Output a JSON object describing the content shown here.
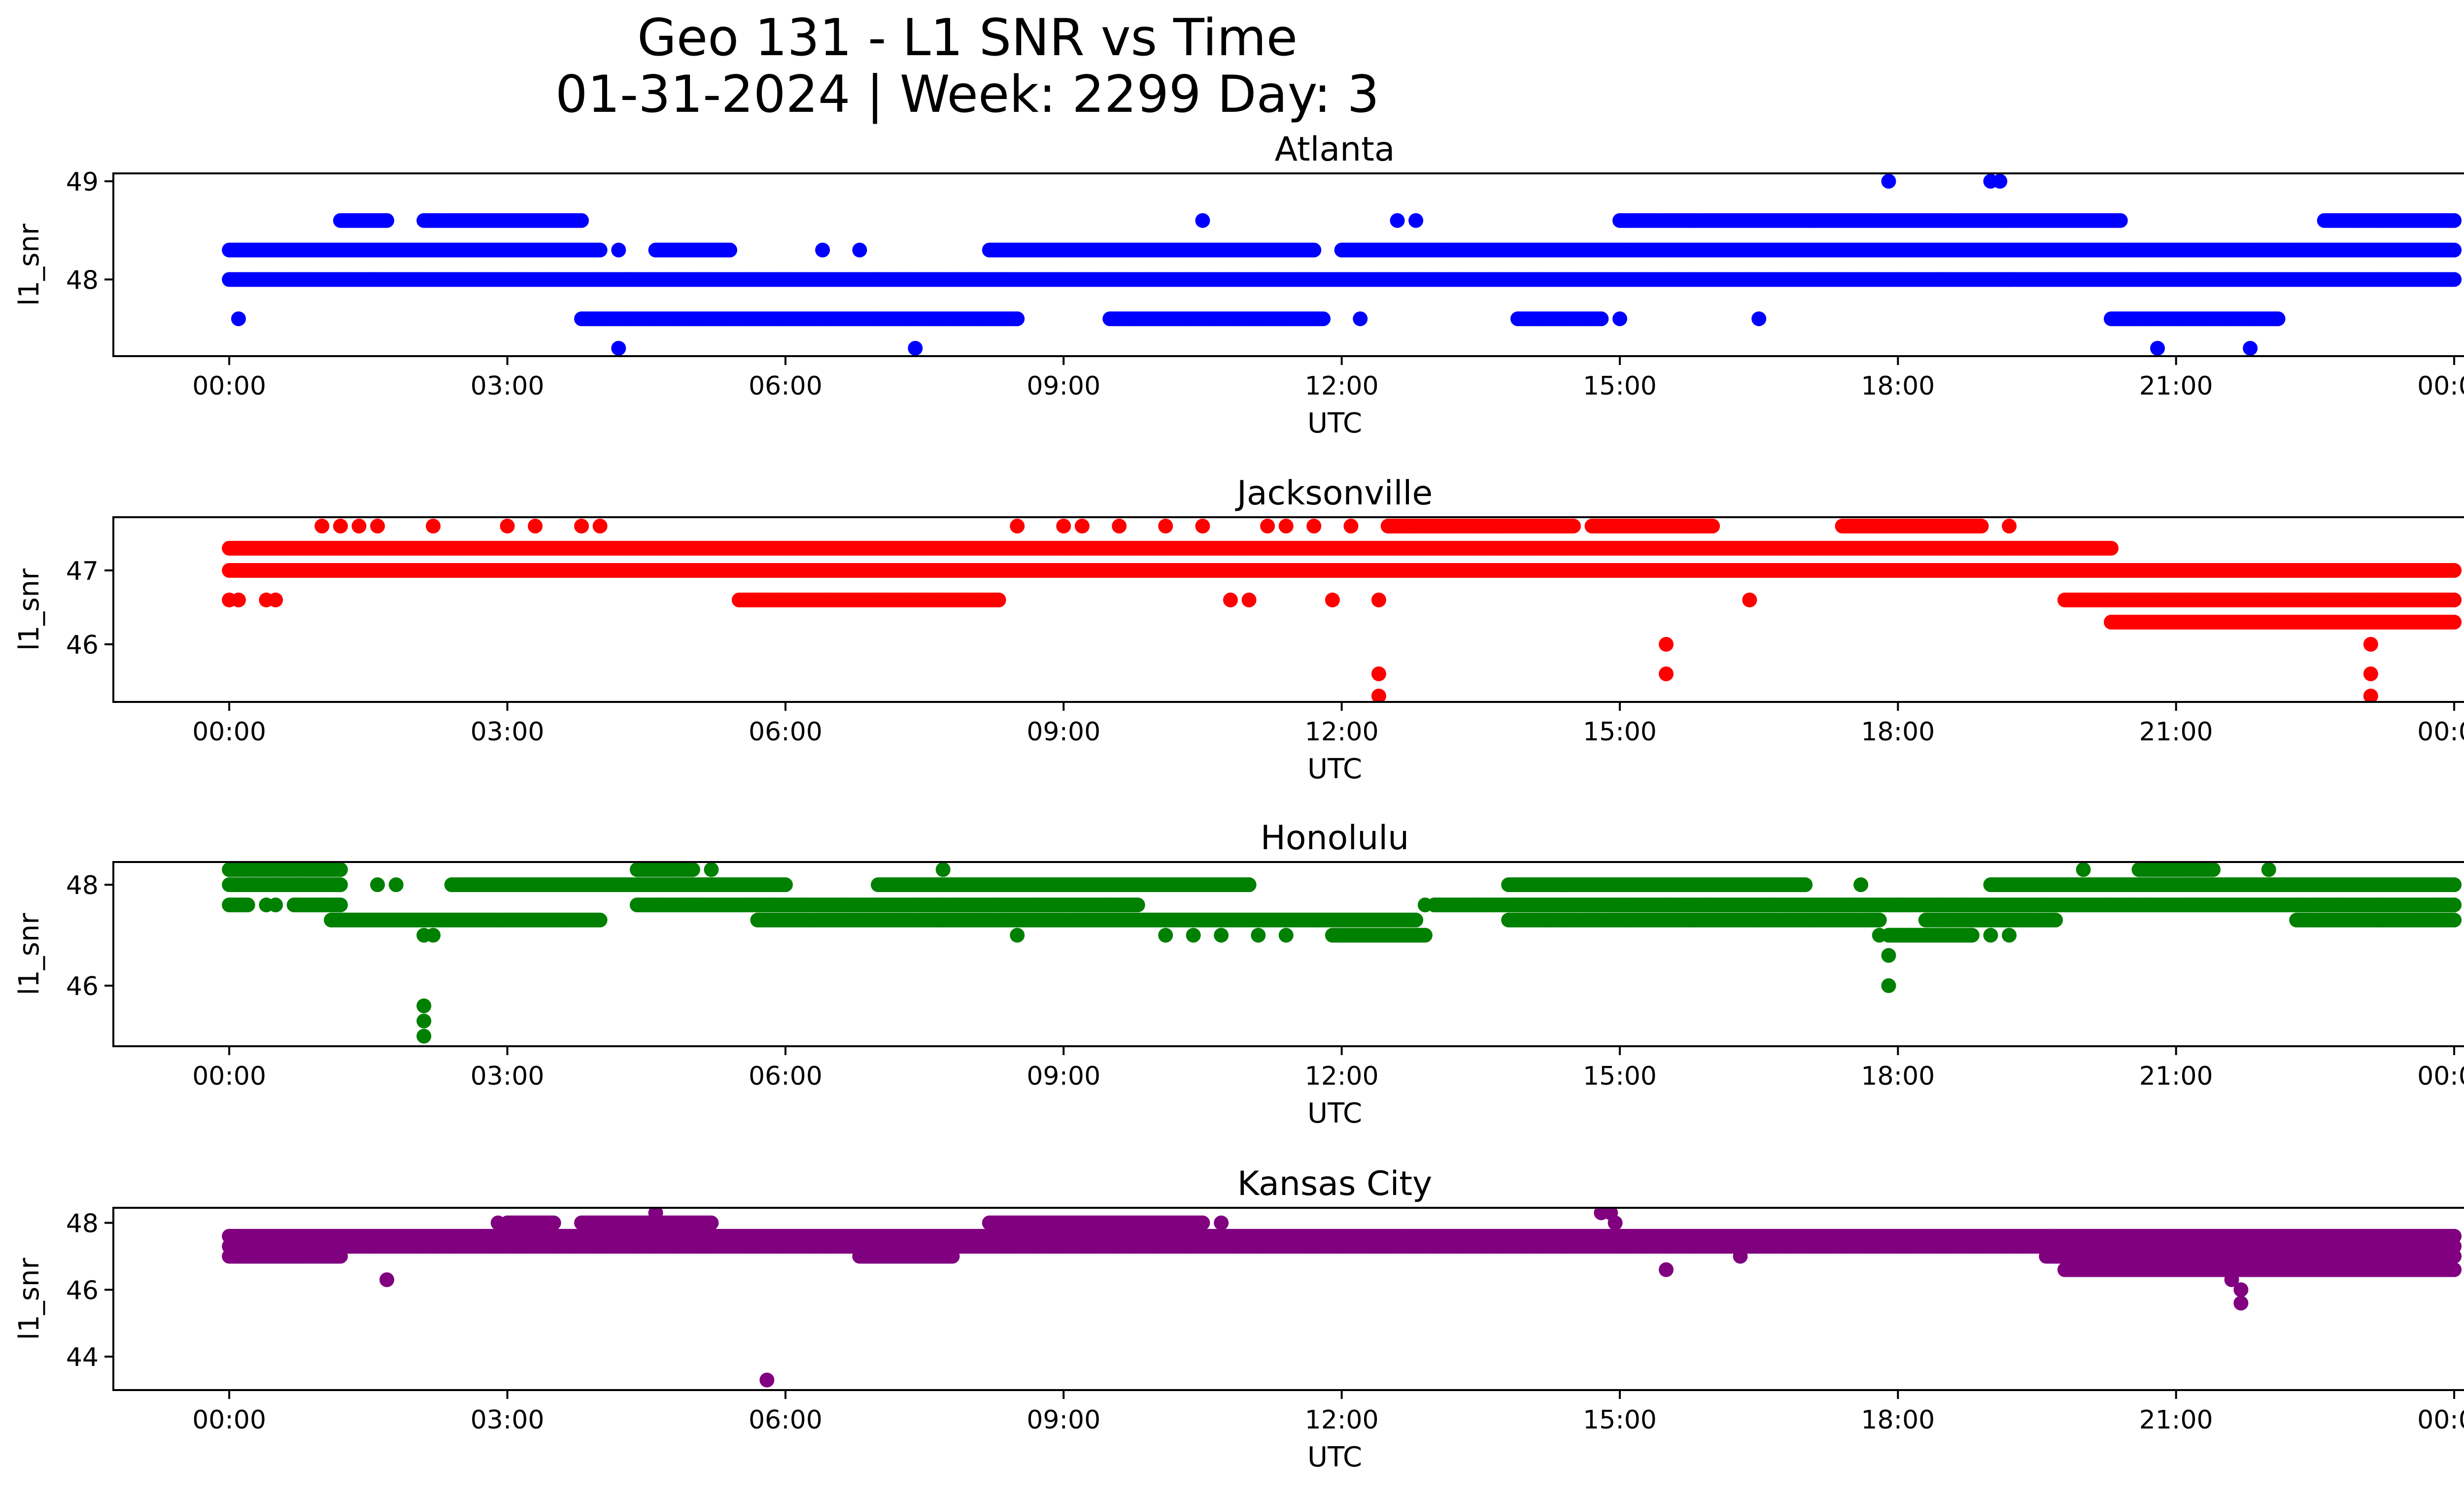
{
  "title_line1": "Geo 131 - L1 SNR vs Time",
  "title_line2": "01-31-2024 | Week: 2299 Day: 3",
  "chart_data": [
    {
      "type": "scatter",
      "title": "Atlanta",
      "xlabel": "UTC",
      "ylabel": "l1_snr",
      "color": "#0000ff",
      "xticks": [
        "00:00",
        "03:00",
        "06:00",
        "09:00",
        "12:00",
        "15:00",
        "18:00",
        "21:00",
        "00:00"
      ],
      "xlim_hours": [
        -1.25,
        25.1
      ],
      "ylim": [
        47.22,
        49.08
      ],
      "yticks": [
        48,
        49
      ],
      "bands": [
        {
          "y": 48.0,
          "segments": [
            [
              0,
              24
            ]
          ]
        },
        {
          "y": 48.3,
          "segments": [
            [
              0,
              4.0
            ],
            [
              4.6,
              5.4
            ],
            [
              8.2,
              11.7
            ],
            [
              12.0,
              24
            ]
          ]
        },
        {
          "y": 48.6,
          "segments": [
            [
              1.2,
              1.7
            ],
            [
              2.1,
              3.8
            ],
            [
              15.0,
              20.4
            ],
            [
              22.6,
              24
            ]
          ]
        },
        {
          "y": 47.6,
          "segments": [
            [
              3.8,
              8.5
            ],
            [
              9.5,
              11.8
            ],
            [
              13.9,
              14.8
            ],
            [
              20.3,
              22.1
            ]
          ]
        }
      ],
      "points": [
        {
          "x": 0.1,
          "y": 47.6
        },
        {
          "x": 4.2,
          "y": 48.3
        },
        {
          "x": 4.2,
          "y": 47.3
        },
        {
          "x": 6.4,
          "y": 48.3
        },
        {
          "x": 6.8,
          "y": 48.3
        },
        {
          "x": 7.4,
          "y": 47.3
        },
        {
          "x": 10.5,
          "y": 48.6
        },
        {
          "x": 12.2,
          "y": 47.6
        },
        {
          "x": 12.6,
          "y": 48.6
        },
        {
          "x": 12.8,
          "y": 48.6
        },
        {
          "x": 15.0,
          "y": 47.6
        },
        {
          "x": 16.5,
          "y": 47.6
        },
        {
          "x": 17.9,
          "y": 49.0
        },
        {
          "x": 19.0,
          "y": 49.0
        },
        {
          "x": 19.1,
          "y": 49.0
        },
        {
          "x": 19.2,
          "y": 48.0
        },
        {
          "x": 20.8,
          "y": 47.3
        },
        {
          "x": 21.8,
          "y": 47.3
        },
        {
          "x": 22.9,
          "y": 48.6
        }
      ]
    },
    {
      "type": "scatter",
      "title": "Jacksonville",
      "xlabel": "UTC",
      "ylabel": "l1_snr",
      "color": "#ff0000",
      "xticks": [
        "00:00",
        "03:00",
        "06:00",
        "09:00",
        "12:00",
        "15:00",
        "18:00",
        "21:00",
        "00:00"
      ],
      "xlim_hours": [
        -1.25,
        25.1
      ],
      "ylim": [
        45.22,
        47.72
      ],
      "yticks": [
        46,
        47
      ],
      "bands": [
        {
          "y": 47.0,
          "segments": [
            [
              0,
              24
            ]
          ]
        },
        {
          "y": 47.3,
          "segments": [
            [
              0,
              20.3
            ]
          ]
        },
        {
          "y": 47.6,
          "segments": [
            [
              12.5,
              14.5
            ],
            [
              14.7,
              16.0
            ],
            [
              17.4,
              18.9
            ]
          ]
        },
        {
          "y": 46.6,
          "segments": [
            [
              5.5,
              8.3
            ],
            [
              19.8,
              24
            ]
          ]
        },
        {
          "y": 46.3,
          "segments": [
            [
              20.3,
              24
            ]
          ]
        }
      ],
      "points": [
        {
          "x": 0.0,
          "y": 46.6
        },
        {
          "x": 0.1,
          "y": 46.6
        },
        {
          "x": 0.4,
          "y": 46.6
        },
        {
          "x": 0.5,
          "y": 46.6
        },
        {
          "x": 1.0,
          "y": 47.6
        },
        {
          "x": 1.2,
          "y": 47.6
        },
        {
          "x": 1.4,
          "y": 47.6
        },
        {
          "x": 1.6,
          "y": 47.6
        },
        {
          "x": 2.2,
          "y": 47.6
        },
        {
          "x": 3.0,
          "y": 47.6
        },
        {
          "x": 3.3,
          "y": 47.6
        },
        {
          "x": 3.8,
          "y": 47.6
        },
        {
          "x": 4.0,
          "y": 47.6
        },
        {
          "x": 8.5,
          "y": 47.6
        },
        {
          "x": 9.0,
          "y": 47.6
        },
        {
          "x": 9.2,
          "y": 47.6
        },
        {
          "x": 9.6,
          "y": 47.6
        },
        {
          "x": 10.1,
          "y": 47.6
        },
        {
          "x": 10.5,
          "y": 47.6
        },
        {
          "x": 10.8,
          "y": 46.6
        },
        {
          "x": 11.0,
          "y": 46.6
        },
        {
          "x": 11.2,
          "y": 47.6
        },
        {
          "x": 11.4,
          "y": 47.6
        },
        {
          "x": 11.7,
          "y": 47.6
        },
        {
          "x": 11.9,
          "y": 46.6
        },
        {
          "x": 12.1,
          "y": 47.6
        },
        {
          "x": 12.4,
          "y": 46.6
        },
        {
          "x": 12.4,
          "y": 45.6
        },
        {
          "x": 12.4,
          "y": 45.3
        },
        {
          "x": 15.5,
          "y": 46.0
        },
        {
          "x": 15.5,
          "y": 45.6
        },
        {
          "x": 16.4,
          "y": 46.6
        },
        {
          "x": 19.2,
          "y": 47.6
        },
        {
          "x": 23.0,
          "y": 46.6
        },
        {
          "x": 23.1,
          "y": 46.0
        },
        {
          "x": 23.1,
          "y": 45.6
        },
        {
          "x": 23.1,
          "y": 45.3
        }
      ]
    },
    {
      "type": "scatter",
      "title": "Honolulu",
      "xlabel": "UTC",
      "ylabel": "l1_snr",
      "color": "#008000",
      "xticks": [
        "00:00",
        "03:00",
        "06:00",
        "09:00",
        "12:00",
        "15:00",
        "18:00",
        "21:00",
        "00:00"
      ],
      "xlim_hours": [
        -1.25,
        25.1
      ],
      "ylim": [
        44.8,
        48.45
      ],
      "yticks": [
        46,
        48
      ],
      "bands": [
        {
          "y": 48.3,
          "segments": [
            [
              0,
              1.2
            ],
            [
              4.4,
              5.0
            ],
            [
              20.6,
              21.4
            ]
          ]
        },
        {
          "y": 48.0,
          "segments": [
            [
              0,
              1.2
            ],
            [
              2.4,
              6.0
            ],
            [
              7.0,
              11.0
            ],
            [
              13.8,
              17.0
            ],
            [
              19.0,
              24
            ]
          ]
        },
        {
          "y": 47.6,
          "segments": [
            [
              0.0,
              0.2
            ],
            [
              0.7,
              1.2
            ],
            [
              4.4,
              5.0
            ],
            [
              5.0,
              9.8
            ],
            [
              13.0,
              18.0
            ],
            [
              18.0,
              24
            ]
          ]
        },
        {
          "y": 47.3,
          "segments": [
            [
              1.1,
              4.0
            ],
            [
              5.7,
              12.8
            ],
            [
              13.8,
              17.8
            ],
            [
              18.3,
              19.7
            ],
            [
              22.3,
              24
            ]
          ]
        },
        {
          "y": 47.0,
          "segments": [
            [
              11.9,
              12.9
            ],
            [
              17.9,
              18.8
            ]
          ]
        }
      ],
      "points": [
        {
          "x": 0.4,
          "y": 47.6
        },
        {
          "x": 0.5,
          "y": 47.6
        },
        {
          "x": 1.6,
          "y": 48.0
        },
        {
          "x": 1.8,
          "y": 48.0
        },
        {
          "x": 2.1,
          "y": 47.0
        },
        {
          "x": 2.1,
          "y": 45.6
        },
        {
          "x": 2.1,
          "y": 45.3
        },
        {
          "x": 2.1,
          "y": 45.0
        },
        {
          "x": 2.2,
          "y": 47.0
        },
        {
          "x": 5.2,
          "y": 48.3
        },
        {
          "x": 7.7,
          "y": 48.3
        },
        {
          "x": 8.5,
          "y": 47.0
        },
        {
          "x": 10.1,
          "y": 47.0
        },
        {
          "x": 10.4,
          "y": 47.0
        },
        {
          "x": 10.7,
          "y": 47.0
        },
        {
          "x": 11.0,
          "y": 48.0
        },
        {
          "x": 11.1,
          "y": 47.0
        },
        {
          "x": 11.4,
          "y": 47.0
        },
        {
          "x": 12.9,
          "y": 47.6
        },
        {
          "x": 14.2,
          "y": 47.3
        },
        {
          "x": 17.6,
          "y": 48.0
        },
        {
          "x": 17.8,
          "y": 47.0
        },
        {
          "x": 17.9,
          "y": 46.6
        },
        {
          "x": 17.9,
          "y": 46.0
        },
        {
          "x": 19.0,
          "y": 47.0
        },
        {
          "x": 19.2,
          "y": 47.0
        },
        {
          "x": 20.0,
          "y": 48.3
        },
        {
          "x": 22.0,
          "y": 48.3
        }
      ]
    },
    {
      "type": "scatter",
      "title": "Kansas City",
      "xlabel": "UTC",
      "ylabel": "l1_snr",
      "color": "#800080",
      "xticks": [
        "00:00",
        "03:00",
        "06:00",
        "09:00",
        "12:00",
        "15:00",
        "18:00",
        "21:00",
        "00:00"
      ],
      "xlim_hours": [
        -1.25,
        25.1
      ],
      "ylim": [
        43.0,
        48.45
      ],
      "yticks": [
        44,
        46,
        48
      ],
      "bands": [
        {
          "y": 47.6,
          "segments": [
            [
              0,
              24
            ]
          ]
        },
        {
          "y": 47.3,
          "segments": [
            [
              0,
              24
            ]
          ]
        },
        {
          "y": 47.0,
          "segments": [
            [
              0,
              1.2
            ],
            [
              6.8,
              7.8
            ],
            [
              19.6,
              24
            ]
          ]
        },
        {
          "y": 48.0,
          "segments": [
            [
              3.0,
              3.5
            ],
            [
              3.8,
              5.2
            ],
            [
              8.2,
              10.5
            ]
          ]
        },
        {
          "y": 46.6,
          "segments": [
            [
              19.8,
              24
            ]
          ]
        }
      ],
      "points": [
        {
          "x": 1.7,
          "y": 46.3
        },
        {
          "x": 2.9,
          "y": 48.0
        },
        {
          "x": 4.6,
          "y": 48.3
        },
        {
          "x": 5.8,
          "y": 43.3
        },
        {
          "x": 10.7,
          "y": 48.0
        },
        {
          "x": 14.8,
          "y": 48.3
        },
        {
          "x": 14.9,
          "y": 48.3
        },
        {
          "x": 14.95,
          "y": 48.0
        },
        {
          "x": 15.5,
          "y": 46.6
        },
        {
          "x": 16.3,
          "y": 47.0
        },
        {
          "x": 19.7,
          "y": 47.6
        },
        {
          "x": 21.6,
          "y": 46.3
        },
        {
          "x": 21.7,
          "y": 46.0
        },
        {
          "x": 21.7,
          "y": 45.6
        },
        {
          "x": 21.8,
          "y": 46.6
        }
      ]
    }
  ]
}
